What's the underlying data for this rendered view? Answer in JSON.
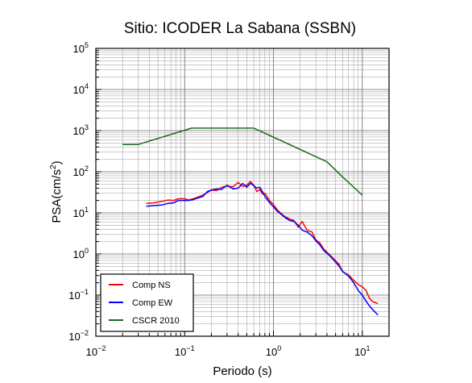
{
  "chart_data": {
    "type": "line",
    "title": "Sitio: ICODER La Sabana (SSBN)",
    "xlabel": "Periodo (s)",
    "ylabel_main": "PSA(cm/s",
    "ylabel_sup": "2",
    "ylabel_tail": ")",
    "x_scale": "log",
    "y_scale": "log",
    "xlim": [
      0.01,
      20
    ],
    "ylim": [
      0.01,
      100000
    ],
    "grid": true,
    "legend_position": "bottom-left",
    "x_ticks": [
      {
        "base": "10",
        "exp": "−2",
        "value": 0.01
      },
      {
        "base": "10",
        "exp": "−1",
        "value": 0.1
      },
      {
        "base": "10",
        "exp": "0",
        "value": 1
      },
      {
        "base": "10",
        "exp": "1",
        "value": 10
      }
    ],
    "y_ticks": [
      {
        "base": "10",
        "exp": "−2",
        "value": 0.01
      },
      {
        "base": "10",
        "exp": "−1",
        "value": 0.1
      },
      {
        "base": "10",
        "exp": "0",
        "value": 1
      },
      {
        "base": "10",
        "exp": "1",
        "value": 10
      },
      {
        "base": "10",
        "exp": "2",
        "value": 100
      },
      {
        "base": "10",
        "exp": "3",
        "value": 1000
      },
      {
        "base": "10",
        "exp": "4",
        "value": 10000
      },
      {
        "base": "10",
        "exp": "5",
        "value": 100000
      }
    ],
    "series": [
      {
        "name": "Comp NS",
        "color": "#ff0000",
        "points": [
          [
            0.037,
            17
          ],
          [
            0.045,
            17.5
          ],
          [
            0.055,
            19
          ],
          [
            0.065,
            20.5
          ],
          [
            0.075,
            20
          ],
          [
            0.085,
            22
          ],
          [
            0.1,
            22
          ],
          [
            0.11,
            20.5
          ],
          [
            0.125,
            22
          ],
          [
            0.14,
            24
          ],
          [
            0.16,
            27
          ],
          [
            0.18,
            31
          ],
          [
            0.2,
            36
          ],
          [
            0.23,
            35
          ],
          [
            0.26,
            42
          ],
          [
            0.3,
            45
          ],
          [
            0.35,
            43
          ],
          [
            0.4,
            55
          ],
          [
            0.45,
            44
          ],
          [
            0.5,
            47
          ],
          [
            0.55,
            58
          ],
          [
            0.6,
            47
          ],
          [
            0.65,
            33
          ],
          [
            0.7,
            37
          ],
          [
            0.75,
            29
          ],
          [
            0.8,
            30
          ],
          [
            0.9,
            20
          ],
          [
            1.0,
            16
          ],
          [
            1.1,
            12
          ],
          [
            1.2,
            10
          ],
          [
            1.3,
            8.5
          ],
          [
            1.5,
            7.2
          ],
          [
            1.7,
            6.5
          ],
          [
            1.9,
            4.5
          ],
          [
            2.1,
            6.2
          ],
          [
            2.4,
            3.7
          ],
          [
            2.7,
            3.5
          ],
          [
            3.0,
            2.2
          ],
          [
            3.3,
            1.9
          ],
          [
            3.7,
            1.3
          ],
          [
            4.2,
            1.0
          ],
          [
            4.8,
            0.75
          ],
          [
            5.5,
            0.55
          ],
          [
            6.0,
            0.37
          ],
          [
            7.0,
            0.31
          ],
          [
            8.0,
            0.23
          ],
          [
            9.0,
            0.18
          ],
          [
            10.0,
            0.16
          ],
          [
            11.0,
            0.13
          ],
          [
            12.0,
            0.085
          ],
          [
            13.0,
            0.07
          ],
          [
            15.0,
            0.062
          ]
        ]
      },
      {
        "name": "Comp EW",
        "color": "#0000ff",
        "points": [
          [
            0.037,
            14.5
          ],
          [
            0.045,
            15
          ],
          [
            0.055,
            15.5
          ],
          [
            0.065,
            17
          ],
          [
            0.075,
            17.5
          ],
          [
            0.085,
            20
          ],
          [
            0.1,
            20
          ],
          [
            0.11,
            20
          ],
          [
            0.125,
            21
          ],
          [
            0.14,
            23
          ],
          [
            0.16,
            25
          ],
          [
            0.18,
            33
          ],
          [
            0.2,
            36
          ],
          [
            0.23,
            38
          ],
          [
            0.26,
            37
          ],
          [
            0.3,
            47
          ],
          [
            0.35,
            38
          ],
          [
            0.4,
            40
          ],
          [
            0.45,
            52
          ],
          [
            0.5,
            42
          ],
          [
            0.55,
            52
          ],
          [
            0.6,
            46
          ],
          [
            0.65,
            40
          ],
          [
            0.7,
            42
          ],
          [
            0.75,
            33
          ],
          [
            0.8,
            25
          ],
          [
            0.9,
            18
          ],
          [
            1.0,
            14
          ],
          [
            1.1,
            11
          ],
          [
            1.2,
            9.5
          ],
          [
            1.3,
            8.2
          ],
          [
            1.5,
            6.6
          ],
          [
            1.7,
            6.2
          ],
          [
            1.9,
            5.0
          ],
          [
            2.1,
            3.8
          ],
          [
            2.4,
            3.4
          ],
          [
            2.7,
            2.8
          ],
          [
            3.0,
            2.1
          ],
          [
            3.3,
            1.7
          ],
          [
            3.7,
            1.2
          ],
          [
            4.2,
            0.95
          ],
          [
            4.8,
            0.7
          ],
          [
            5.5,
            0.5
          ],
          [
            6.0,
            0.38
          ],
          [
            7.0,
            0.29
          ],
          [
            8.0,
            0.2
          ],
          [
            9.0,
            0.13
          ],
          [
            10.0,
            0.1
          ],
          [
            11.0,
            0.072
          ],
          [
            12.0,
            0.055
          ],
          [
            13.0,
            0.045
          ],
          [
            15.0,
            0.033
          ]
        ]
      },
      {
        "name": "CSCR 2010",
        "color": "#1a6b1a",
        "points": [
          [
            0.02,
            460
          ],
          [
            0.03,
            460
          ],
          [
            0.12,
            1150
          ],
          [
            0.6,
            1150
          ],
          [
            4.0,
            175
          ],
          [
            6.0,
            75
          ],
          [
            10.0,
            27
          ]
        ]
      }
    ]
  }
}
